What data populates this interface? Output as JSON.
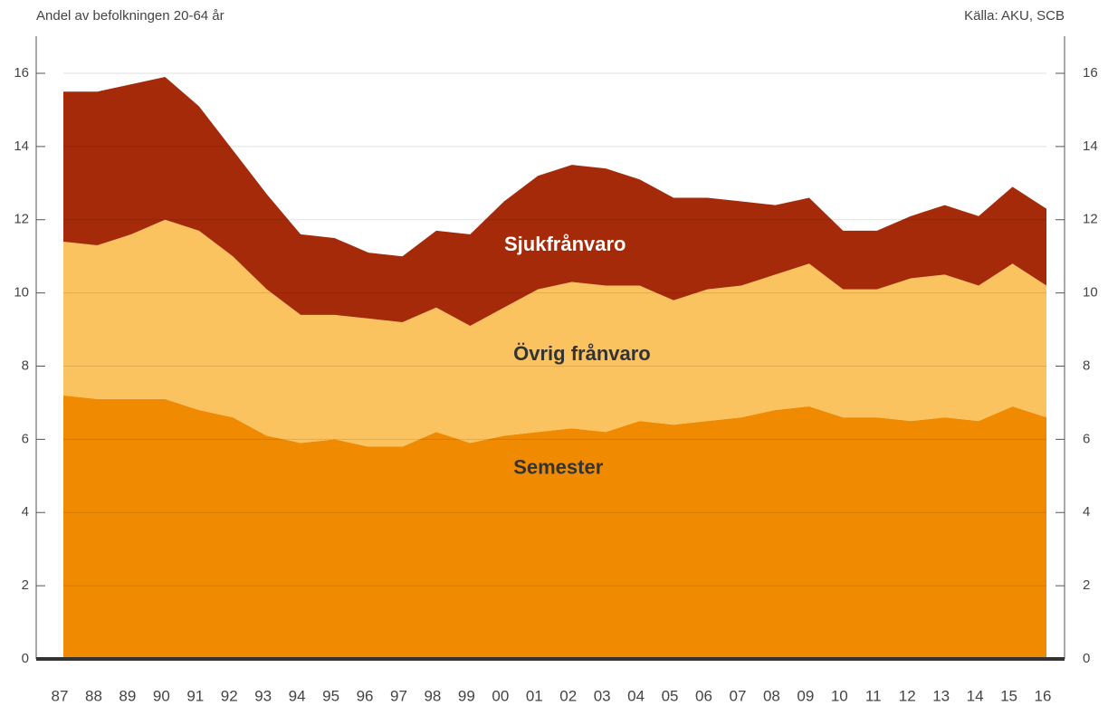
{
  "chart_data": {
    "type": "stacked_area",
    "subtitle": "Andel av befolkningen 20-64 år",
    "source": "Källa: AKU, SCB",
    "categories": [
      "87",
      "88",
      "89",
      "90",
      "91",
      "92",
      "93",
      "94",
      "95",
      "96",
      "97",
      "98",
      "99",
      "00",
      "01",
      "02",
      "03",
      "04",
      "05",
      "06",
      "07",
      "08",
      "09",
      "10",
      "11",
      "12",
      "13",
      "14",
      "15",
      "16"
    ],
    "series": [
      {
        "name": "Semester",
        "color": "#f08a00",
        "values": [
          7.2,
          7.1,
          7.1,
          7.1,
          6.8,
          6.6,
          6.1,
          5.9,
          6.0,
          5.8,
          5.8,
          6.2,
          5.9,
          6.1,
          6.2,
          6.3,
          6.2,
          6.5,
          6.4,
          6.5,
          6.6,
          6.8,
          6.9,
          6.6,
          6.6,
          6.5,
          6.6,
          6.5,
          6.9,
          6.6
        ]
      },
      {
        "name": "Övrig frånvaro",
        "color": "#fbc35f",
        "values": [
          4.2,
          4.2,
          4.5,
          4.9,
          4.9,
          4.4,
          4.0,
          3.5,
          3.4,
          3.5,
          3.4,
          3.4,
          3.2,
          3.5,
          3.9,
          4.0,
          4.0,
          3.7,
          3.4,
          3.6,
          3.6,
          3.7,
          3.9,
          3.5,
          3.5,
          3.9,
          3.9,
          3.7,
          3.9,
          3.6
        ]
      },
      {
        "name": "Sjukfrånvaro",
        "color": "#a52a0a",
        "values": [
          4.1,
          4.2,
          4.1,
          3.9,
          3.4,
          2.9,
          2.6,
          2.2,
          2.1,
          1.8,
          1.8,
          2.1,
          2.5,
          2.9,
          3.1,
          3.2,
          3.2,
          2.9,
          2.8,
          2.5,
          2.3,
          1.9,
          1.8,
          1.6,
          1.6,
          1.7,
          1.9,
          1.9,
          2.1,
          2.1
        ]
      }
    ],
    "ylim": [
      0,
      16
    ],
    "yticks": [
      0,
      2,
      4,
      6,
      8,
      10,
      12,
      14,
      16
    ],
    "y2lim": [
      0,
      16
    ],
    "y2ticks": [
      0,
      2,
      4,
      6,
      8,
      10,
      12,
      14,
      16
    ],
    "grid": true
  }
}
